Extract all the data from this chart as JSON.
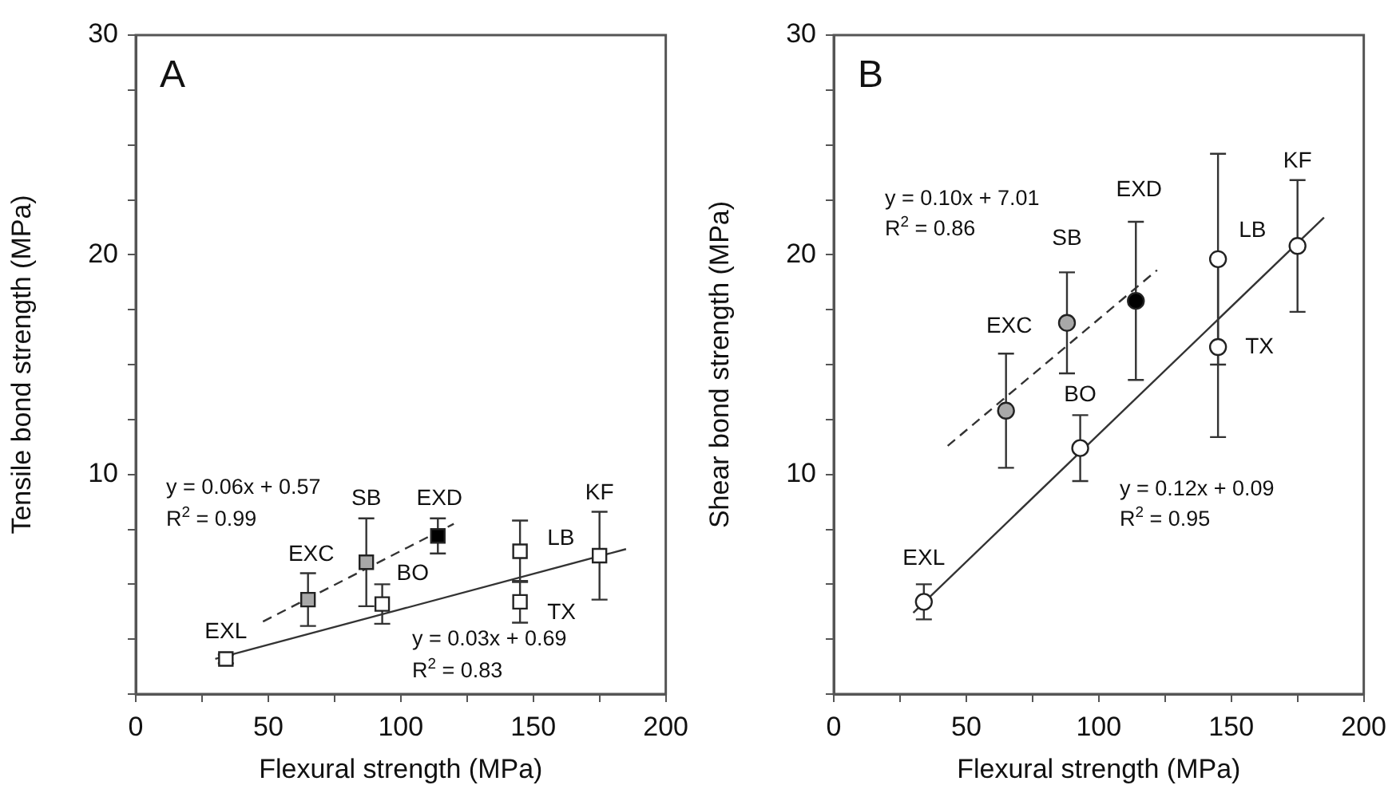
{
  "chart_data": [
    {
      "type": "scatter",
      "title": "A",
      "xlabel": "Flexural strength (MPa)",
      "ylabel": "Tensile bond strength (MPa)",
      "xlim": [
        0,
        200
      ],
      "ylim": [
        0,
        30
      ],
      "xticks": [
        0,
        {
          "value": 25,
          "label": null
        },
        50,
        {
          "value": 75,
          "label": null
        },
        100,
        {
          "value": 125,
          "label": null
        },
        150,
        {
          "value": 175,
          "label": null
        },
        200
      ],
      "yticks": [
        {
          "value": 0,
          "label": null
        },
        {
          "value": 2.5,
          "label": null
        },
        {
          "value": 5,
          "label": null
        },
        {
          "value": 7.5,
          "label": null
        },
        10,
        {
          "value": 12.5,
          "label": null
        },
        {
          "value": 15,
          "label": null
        },
        {
          "value": 17.5,
          "label": null
        },
        20,
        {
          "value": 22.5,
          "label": null
        },
        {
          "value": 25,
          "label": null
        },
        {
          "value": 27.5,
          "label": null
        },
        30
      ],
      "grid": false,
      "legend": false,
      "marker": "square",
      "series": [
        {
          "color": "#ffffff",
          "x": [
            34,
            93,
            145,
            145,
            175
          ],
          "values": [
            1.6,
            4.1,
            6.5,
            4.2,
            6.3
          ],
          "errors": [
            0.2,
            0.9,
            1.4,
            0.95,
            2.0
          ]
        },
        {
          "color": "#a8a8a8",
          "x": [
            65,
            87
          ],
          "values": [
            4.3,
            6.0
          ],
          "errors": [
            1.2,
            2.0
          ]
        },
        {
          "color": "#000000",
          "x": [
            114
          ],
          "values": [
            7.2
          ],
          "errors": [
            0.8
          ]
        },
        {
          "type": "line",
          "color": "#333333",
          "line_style": "dashed",
          "marker": "none",
          "x": [
            48,
            120
          ],
          "values": [
            3.3,
            7.75
          ]
        },
        {
          "type": "line",
          "color": "#333333",
          "line_style": "solid",
          "marker": "none",
          "x": [
            30,
            185
          ],
          "values": [
            1.6,
            6.6
          ]
        }
      ],
      "annotations": [
        "y = 0.06x + 0.57",
        "R$^{2}$ = 0.99",
        "y = 0.03x + 0.69",
        "R$^{2}$ = 0.83",
        {
          "text": "EXL",
          "x": 34,
          "y": 1.6
        },
        {
          "text": "EXC",
          "x": 65,
          "y": 4.3
        },
        {
          "text": "SB",
          "x": 87,
          "y": 6.0
        },
        {
          "text": "BO",
          "x": 93,
          "y": 4.1
        },
        {
          "text": "EXD",
          "x": 114,
          "y": 7.2
        },
        {
          "text": "LB",
          "x": 145,
          "y": 6.5
        },
        {
          "text": "TX",
          "x": 145,
          "y": 4.2
        },
        {
          "text": "KF",
          "x": 175,
          "y": 6.3
        }
      ]
    },
    {
      "type": "scatter",
      "title": "B",
      "xlabel": "Flexural strength (MPa)",
      "ylabel": "Shear bond strength (MPa)",
      "xlim": [
        0,
        200
      ],
      "ylim": [
        0,
        30
      ],
      "xticks": [
        0,
        {
          "value": 25,
          "label": null
        },
        50,
        {
          "value": 75,
          "label": null
        },
        100,
        {
          "value": 125,
          "label": null
        },
        150,
        {
          "value": 175,
          "label": null
        },
        200
      ],
      "yticks": [
        {
          "value": 0,
          "label": null
        },
        {
          "value": 2.5,
          "label": null
        },
        {
          "value": 5,
          "label": null
        },
        {
          "value": 7.5,
          "label": null
        },
        10,
        {
          "value": 12.5,
          "label": null
        },
        {
          "value": 15,
          "label": null
        },
        {
          "value": 17.5,
          "label": null
        },
        20,
        {
          "value": 22.5,
          "label": null
        },
        {
          "value": 25,
          "label": null
        },
        {
          "value": 27.5,
          "label": null
        },
        30
      ],
      "grid": false,
      "legend": false,
      "marker": "circle",
      "series": [
        {
          "color": "#ffffff",
          "x": [
            34,
            93,
            145,
            145,
            175
          ],
          "values": [
            4.2,
            11.2,
            19.8,
            15.8,
            20.4
          ],
          "errors": [
            0.8,
            1.5,
            4.8,
            4.1,
            3.0
          ]
        },
        {
          "color": "#a8a8a8",
          "x": [
            65,
            88
          ],
          "values": [
            12.9,
            16.9
          ],
          "errors": [
            2.6,
            2.3
          ]
        },
        {
          "color": "#000000",
          "x": [
            114
          ],
          "values": [
            17.9
          ],
          "errors": [
            3.6
          ]
        },
        {
          "type": "line",
          "color": "#333333",
          "line_style": "dashed",
          "marker": "none",
          "x": [
            43,
            122
          ],
          "values": [
            11.3,
            19.3
          ]
        },
        {
          "type": "line",
          "color": "#333333",
          "line_style": "solid",
          "marker": "none",
          "x": [
            30,
            185
          ],
          "values": [
            3.7,
            21.7
          ]
        }
      ],
      "annotations": [
        "y = 0.10x + 7.01",
        "R$^{2}$ = 0.86",
        "y = 0.12x + 0.09",
        "R$^{2}$ = 0.95",
        {
          "text": "EXL",
          "x": 34,
          "y": 4.2
        },
        {
          "text": "EXC",
          "x": 65,
          "y": 15.5
        },
        {
          "text": "SB",
          "x": 88,
          "y": 19.2
        },
        {
          "text": "BO",
          "x": 93,
          "y": 11.2
        },
        {
          "text": "EXD",
          "x": 114,
          "y": 21.5
        },
        {
          "text": "LB",
          "x": 145,
          "y": 19.8
        },
        {
          "text": "TX",
          "x": 145,
          "y": 15.8
        },
        {
          "text": "KF",
          "x": 175,
          "y": 23.3
        }
      ]
    }
  ]
}
